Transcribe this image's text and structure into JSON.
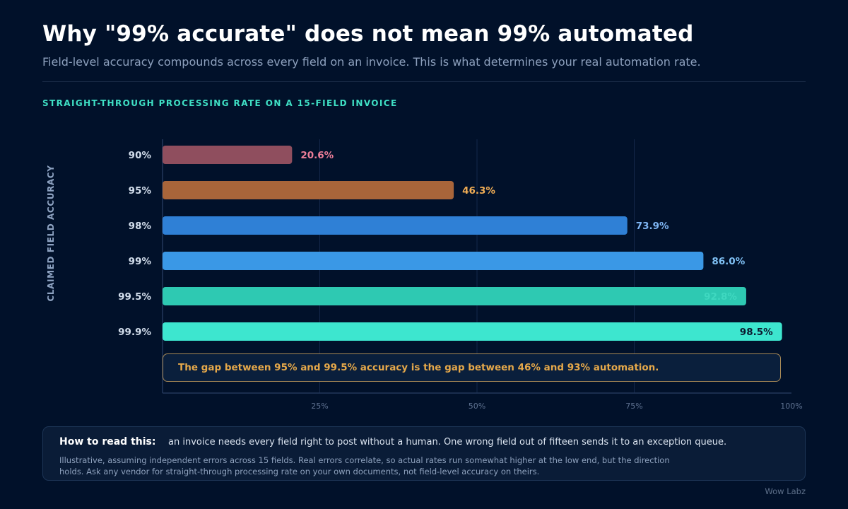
{
  "header": {
    "title": "Why \"99% accurate\" does not mean 99% automated",
    "subtitle": "Field-level accuracy compounds across every field on an invoice. This is what determines your real automation rate."
  },
  "chart_data": {
    "type": "bar",
    "orientation": "horizontal",
    "title": "STRAIGHT-THROUGH PROCESSING RATE ON A 15-FIELD INVOICE",
    "ylabel": "CLAIMED FIELD ACCURACY",
    "xlabel": "",
    "categories": [
      "90%",
      "95%",
      "98%",
      "99%",
      "99.5%",
      "99.9%"
    ],
    "values": [
      20.6,
      46.3,
      73.9,
      86.0,
      92.8,
      98.5
    ],
    "value_labels": [
      "20.6%",
      "46.3%",
      "73.9%",
      "86.0%",
      "92.8%",
      "98.5%"
    ],
    "bar_colors": [
      "#8f4e5e",
      "#a8653a",
      "#2f80d6",
      "#3a98e6",
      "#2ec9b2",
      "#3de6cf"
    ],
    "label_colors": [
      "#ec7e98",
      "#f0ad55",
      "#7fb6f4",
      "#7fc0f4",
      "#3fd8c0",
      "#0b1a30"
    ],
    "xlim": [
      0,
      100
    ],
    "x_ticks": [
      25,
      50,
      75,
      100
    ],
    "x_tick_labels": [
      "25%",
      "50%",
      "75%",
      "100%"
    ],
    "grid": true,
    "annotation": "The gap between 95% and 99.5% accuracy is the gap between 46% and 93% automation."
  },
  "note": {
    "label": "How to read this:",
    "text": "an invoice needs every field right to post without a human. One wrong field out of fifteen sends it to an exception queue.",
    "small": "Illustrative, assuming independent errors across 15 fields. Real errors correlate, so actual rates run somewhat higher at the low end, but the direction holds. Ask any vendor for straight-through processing rate on your own documents, not field-level accuracy on theirs."
  },
  "credit": "Wow Labz"
}
